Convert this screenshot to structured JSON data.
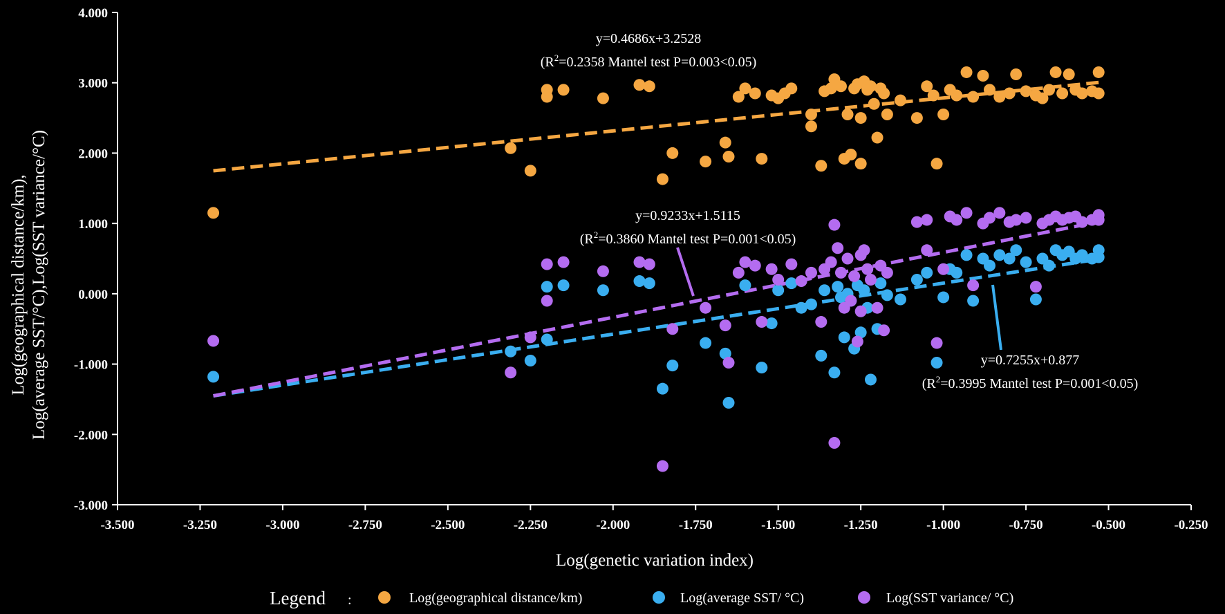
{
  "chart_data": {
    "type": "scatter",
    "xlabel": "Log(genetic variation index)",
    "ylabel_line1": "Log(geographical distance/km),",
    "ylabel_line2": "Log(average SST/°C),Log(SST variance/°C)",
    "xlim": [
      -3.5,
      -0.25
    ],
    "ylim": [
      -3.0,
      4.0
    ],
    "xticks": [
      "-3.500",
      "-3.250",
      "-3.000",
      "-2.750",
      "-2.500",
      "-2.250",
      "-2.000",
      "-1.750",
      "-1.500",
      "-1.250",
      "-1.000",
      "-0.750",
      "-0.500",
      "-0.250"
    ],
    "yticks": [
      "-3.000",
      "-2.000",
      "-1.000",
      "0.000",
      "1.000",
      "2.000",
      "3.000",
      "4.000"
    ],
    "grid": false,
    "legend_title": "Legend",
    "legend_position": "bottom",
    "series": [
      {
        "name": "Log(geographical distance/km)",
        "color": "#f5a742",
        "trend": {
          "slope": 0.4686,
          "intercept": 3.2528,
          "x_range": [
            -3.21,
            -0.53
          ]
        },
        "equation": "y=0.4686x+3.2528",
        "stats_prefix": "(R",
        "stats_suffix": "=0.2358 Mantel test P=0.003<0.05)",
        "points": [
          [
            -3.21,
            1.15
          ],
          [
            -2.31,
            2.07
          ],
          [
            -2.25,
            1.75
          ],
          [
            -2.2,
            2.8
          ],
          [
            -2.2,
            2.9
          ],
          [
            -2.15,
            2.9
          ],
          [
            -2.03,
            2.78
          ],
          [
            -1.92,
            2.97
          ],
          [
            -1.89,
            2.95
          ],
          [
            -1.85,
            1.63
          ],
          [
            -1.82,
            2.0
          ],
          [
            -1.72,
            1.88
          ],
          [
            -1.66,
            2.15
          ],
          [
            -1.65,
            1.95
          ],
          [
            -1.62,
            2.8
          ],
          [
            -1.6,
            2.92
          ],
          [
            -1.57,
            2.85
          ],
          [
            -1.55,
            1.92
          ],
          [
            -1.52,
            2.82
          ],
          [
            -1.5,
            2.78
          ],
          [
            -1.48,
            2.85
          ],
          [
            -1.46,
            2.92
          ],
          [
            -1.4,
            2.38
          ],
          [
            -1.4,
            2.55
          ],
          [
            -1.37,
            1.82
          ],
          [
            -1.36,
            2.88
          ],
          [
            -1.34,
            2.92
          ],
          [
            -1.33,
            3.05
          ],
          [
            -1.31,
            2.95
          ],
          [
            -1.3,
            1.92
          ],
          [
            -1.29,
            2.55
          ],
          [
            -1.28,
            1.98
          ],
          [
            -1.27,
            2.92
          ],
          [
            -1.26,
            2.98
          ],
          [
            -1.25,
            2.5
          ],
          [
            -1.25,
            1.85
          ],
          [
            -1.24,
            3.02
          ],
          [
            -1.23,
            2.9
          ],
          [
            -1.22,
            2.95
          ],
          [
            -1.21,
            2.7
          ],
          [
            -1.2,
            2.22
          ],
          [
            -1.19,
            2.92
          ],
          [
            -1.18,
            2.85
          ],
          [
            -1.17,
            2.55
          ],
          [
            -1.13,
            2.75
          ],
          [
            -1.08,
            2.5
          ],
          [
            -1.05,
            2.95
          ],
          [
            -1.03,
            2.82
          ],
          [
            -1.02,
            1.85
          ],
          [
            -1.0,
            2.55
          ],
          [
            -0.98,
            2.9
          ],
          [
            -0.96,
            2.82
          ],
          [
            -0.93,
            3.15
          ],
          [
            -0.91,
            2.8
          ],
          [
            -0.88,
            3.1
          ],
          [
            -0.86,
            2.9
          ],
          [
            -0.83,
            2.8
          ],
          [
            -0.8,
            2.85
          ],
          [
            -0.78,
            3.12
          ],
          [
            -0.75,
            2.88
          ],
          [
            -0.72,
            2.82
          ],
          [
            -0.7,
            2.78
          ],
          [
            -0.68,
            2.9
          ],
          [
            -0.66,
            3.15
          ],
          [
            -0.64,
            2.85
          ],
          [
            -0.62,
            3.12
          ],
          [
            -0.6,
            2.9
          ],
          [
            -0.58,
            2.85
          ],
          [
            -0.55,
            2.88
          ],
          [
            -0.53,
            3.15
          ],
          [
            -0.53,
            2.85
          ]
        ]
      },
      {
        "name": "Log(average SST/ °C)",
        "color": "#3aaef0",
        "trend": {
          "slope": 0.7255,
          "intercept": 0.877,
          "x_range": [
            -3.21,
            -0.53
          ]
        },
        "equation": "y=0.7255x+0.877",
        "stats_prefix": "(R",
        "stats_suffix": "=0.3995 Mantel test P=0.001<0.05)",
        "points": [
          [
            -3.21,
            -1.18
          ],
          [
            -2.31,
            -0.82
          ],
          [
            -2.25,
            -0.95
          ],
          [
            -2.2,
            -0.65
          ],
          [
            -2.2,
            0.1
          ],
          [
            -2.15,
            0.12
          ],
          [
            -2.03,
            0.05
          ],
          [
            -1.92,
            0.18
          ],
          [
            -1.89,
            0.15
          ],
          [
            -1.85,
            -1.35
          ],
          [
            -1.82,
            -1.02
          ],
          [
            -1.72,
            -0.7
          ],
          [
            -1.66,
            -0.85
          ],
          [
            -1.65,
            -1.55
          ],
          [
            -1.6,
            0.12
          ],
          [
            -1.55,
            -1.05
          ],
          [
            -1.52,
            -0.42
          ],
          [
            -1.5,
            0.05
          ],
          [
            -1.46,
            0.15
          ],
          [
            -1.43,
            -0.2
          ],
          [
            -1.4,
            -0.15
          ],
          [
            -1.37,
            -0.88
          ],
          [
            -1.36,
            0.05
          ],
          [
            -1.33,
            -1.12
          ],
          [
            -1.32,
            0.1
          ],
          [
            -1.31,
            -0.05
          ],
          [
            -1.3,
            -0.62
          ],
          [
            -1.29,
            0.0
          ],
          [
            -1.28,
            -0.1
          ],
          [
            -1.27,
            -0.78
          ],
          [
            -1.26,
            0.12
          ],
          [
            -1.25,
            -0.55
          ],
          [
            -1.24,
            0.05
          ],
          [
            -1.23,
            -0.2
          ],
          [
            -1.22,
            -1.22
          ],
          [
            -1.2,
            -0.5
          ],
          [
            -1.19,
            0.15
          ],
          [
            -1.17,
            -0.02
          ],
          [
            -1.13,
            -0.08
          ],
          [
            -1.08,
            0.2
          ],
          [
            -1.05,
            0.3
          ],
          [
            -1.02,
            -0.98
          ],
          [
            -1.0,
            -0.05
          ],
          [
            -0.98,
            0.35
          ],
          [
            -0.96,
            0.3
          ],
          [
            -0.93,
            0.55
          ],
          [
            -0.91,
            -0.1
          ],
          [
            -0.88,
            0.5
          ],
          [
            -0.86,
            0.4
          ],
          [
            -0.83,
            0.55
          ],
          [
            -0.8,
            0.5
          ],
          [
            -0.78,
            0.62
          ],
          [
            -0.75,
            0.45
          ],
          [
            -0.72,
            -0.08
          ],
          [
            -0.7,
            0.5
          ],
          [
            -0.68,
            0.4
          ],
          [
            -0.66,
            0.62
          ],
          [
            -0.64,
            0.55
          ],
          [
            -0.62,
            0.6
          ],
          [
            -0.6,
            0.5
          ],
          [
            -0.58,
            0.55
          ],
          [
            -0.55,
            0.5
          ],
          [
            -0.53,
            0.62
          ],
          [
            -0.53,
            0.52
          ]
        ]
      },
      {
        "name": "Log(SST variance/ °C)",
        "color": "#b46cf0",
        "trend": {
          "slope": 0.9233,
          "intercept": 1.5115,
          "x_range": [
            -3.21,
            -0.53
          ]
        },
        "equation": "y=0.9233x+1.5115",
        "stats_prefix": "(R",
        "stats_suffix": "=0.3860 Mantel test P=0.001<0.05)",
        "points": [
          [
            -3.21,
            -0.67
          ],
          [
            -2.31,
            -1.12
          ],
          [
            -2.25,
            -0.62
          ],
          [
            -2.2,
            -0.1
          ],
          [
            -2.2,
            0.42
          ],
          [
            -2.15,
            0.45
          ],
          [
            -2.03,
            0.32
          ],
          [
            -1.92,
            0.45
          ],
          [
            -1.89,
            0.42
          ],
          [
            -1.85,
            -2.45
          ],
          [
            -1.82,
            -0.5
          ],
          [
            -1.72,
            -0.2
          ],
          [
            -1.66,
            -0.45
          ],
          [
            -1.65,
            -0.98
          ],
          [
            -1.62,
            0.3
          ],
          [
            -1.6,
            0.45
          ],
          [
            -1.57,
            0.4
          ],
          [
            -1.55,
            -0.4
          ],
          [
            -1.52,
            0.35
          ],
          [
            -1.5,
            0.2
          ],
          [
            -1.46,
            0.42
          ],
          [
            -1.43,
            0.18
          ],
          [
            -1.4,
            0.3
          ],
          [
            -1.37,
            -0.4
          ],
          [
            -1.36,
            0.35
          ],
          [
            -1.34,
            0.45
          ],
          [
            -1.33,
            0.98
          ],
          [
            -1.33,
            -2.12
          ],
          [
            -1.32,
            0.65
          ],
          [
            -1.31,
            0.3
          ],
          [
            -1.3,
            -0.2
          ],
          [
            -1.29,
            0.5
          ],
          [
            -1.28,
            -0.1
          ],
          [
            -1.27,
            0.25
          ],
          [
            -1.26,
            -0.68
          ],
          [
            -1.25,
            0.55
          ],
          [
            -1.25,
            -0.25
          ],
          [
            -1.24,
            0.62
          ],
          [
            -1.23,
            0.35
          ],
          [
            -1.22,
            0.2
          ],
          [
            -1.2,
            -0.2
          ],
          [
            -1.19,
            0.4
          ],
          [
            -1.18,
            -0.52
          ],
          [
            -1.17,
            0.3
          ],
          [
            -1.08,
            1.02
          ],
          [
            -1.05,
            1.05
          ],
          [
            -1.05,
            0.62
          ],
          [
            -1.02,
            -0.7
          ],
          [
            -1.0,
            0.35
          ],
          [
            -0.98,
            1.1
          ],
          [
            -0.96,
            1.05
          ],
          [
            -0.93,
            1.15
          ],
          [
            -0.91,
            0.12
          ],
          [
            -0.88,
            1.0
          ],
          [
            -0.86,
            1.08
          ],
          [
            -0.83,
            1.15
          ],
          [
            -0.8,
            1.02
          ],
          [
            -0.78,
            1.05
          ],
          [
            -0.75,
            1.08
          ],
          [
            -0.72,
            0.1
          ],
          [
            -0.7,
            1.0
          ],
          [
            -0.68,
            1.05
          ],
          [
            -0.66,
            1.1
          ],
          [
            -0.64,
            1.05
          ],
          [
            -0.62,
            1.08
          ],
          [
            -0.6,
            1.1
          ],
          [
            -0.58,
            1.02
          ],
          [
            -0.55,
            1.05
          ],
          [
            -0.53,
            1.12
          ],
          [
            -0.53,
            1.05
          ]
        ]
      }
    ]
  }
}
